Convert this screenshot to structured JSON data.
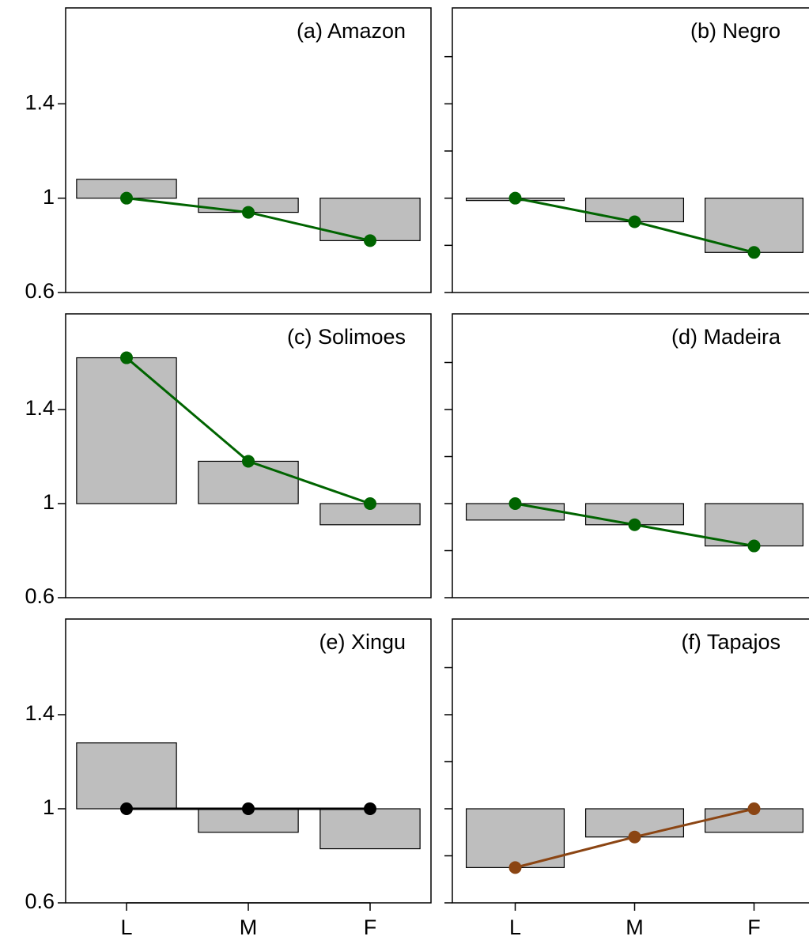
{
  "categories": [
    "L",
    "M",
    "F"
  ],
  "chart_data": [
    {
      "type": "bar",
      "title": "(a) Amazon",
      "values": [
        1.08,
        0.94,
        0.82
      ],
      "line_values": [
        1,
        0.94,
        0.82
      ],
      "bar_color": "#bebebe",
      "line_color": "#006400",
      "ylim": [
        0.6,
        1.8
      ],
      "yticks": [
        0.6,
        1,
        1.4
      ],
      "ytick_labels": true
    },
    {
      "type": "bar",
      "title": "(b) Negro",
      "values": [
        0.99,
        0.9,
        0.77
      ],
      "line_values": [
        1,
        0.9,
        0.77
      ],
      "bar_color": "#bebebe",
      "line_color": "#006400",
      "ylim": [
        0.6,
        1.8
      ],
      "yticks": [
        0.6,
        0.8,
        1,
        1.2,
        1.4,
        1.6
      ],
      "ytick_labels": false
    },
    {
      "type": "bar",
      "title": "(c) Solimoes",
      "values": [
        1.62,
        1.18,
        0.91
      ],
      "line_values": [
        1.62,
        1.18,
        1
      ],
      "bar_color": "#bebebe",
      "line_color": "#006400",
      "ylim": [
        0.6,
        1.8
      ],
      "yticks": [
        0.6,
        1,
        1.4
      ],
      "ytick_labels": true
    },
    {
      "type": "bar",
      "title": "(d) Madeira",
      "values": [
        0.93,
        0.91,
        0.82
      ],
      "line_values": [
        1,
        0.91,
        0.82
      ],
      "bar_color": "#bebebe",
      "line_color": "#006400",
      "ylim": [
        0.6,
        1.8
      ],
      "yticks": [
        0.6,
        0.8,
        1,
        1.2,
        1.4,
        1.6
      ],
      "ytick_labels": false
    },
    {
      "type": "bar",
      "title": "(e) Xingu",
      "values": [
        1.28,
        0.9,
        0.83
      ],
      "line_values": [
        1,
        1,
        1
      ],
      "bar_color": "#bebebe",
      "line_color": "#000000",
      "ylim": [
        0.6,
        1.8
      ],
      "yticks": [
        0.6,
        1,
        1.4
      ],
      "ytick_labels": true
    },
    {
      "type": "bar",
      "title": "(f) Tapajos",
      "values": [
        0.75,
        0.88,
        0.9
      ],
      "line_values": [
        0.75,
        0.88,
        1
      ],
      "bar_color": "#bebebe",
      "line_color": "#8b4513",
      "ylim": [
        0.6,
        1.8
      ],
      "yticks": [
        0.6,
        0.8,
        1,
        1.2,
        1.4,
        1.6
      ],
      "ytick_labels": false
    }
  ]
}
